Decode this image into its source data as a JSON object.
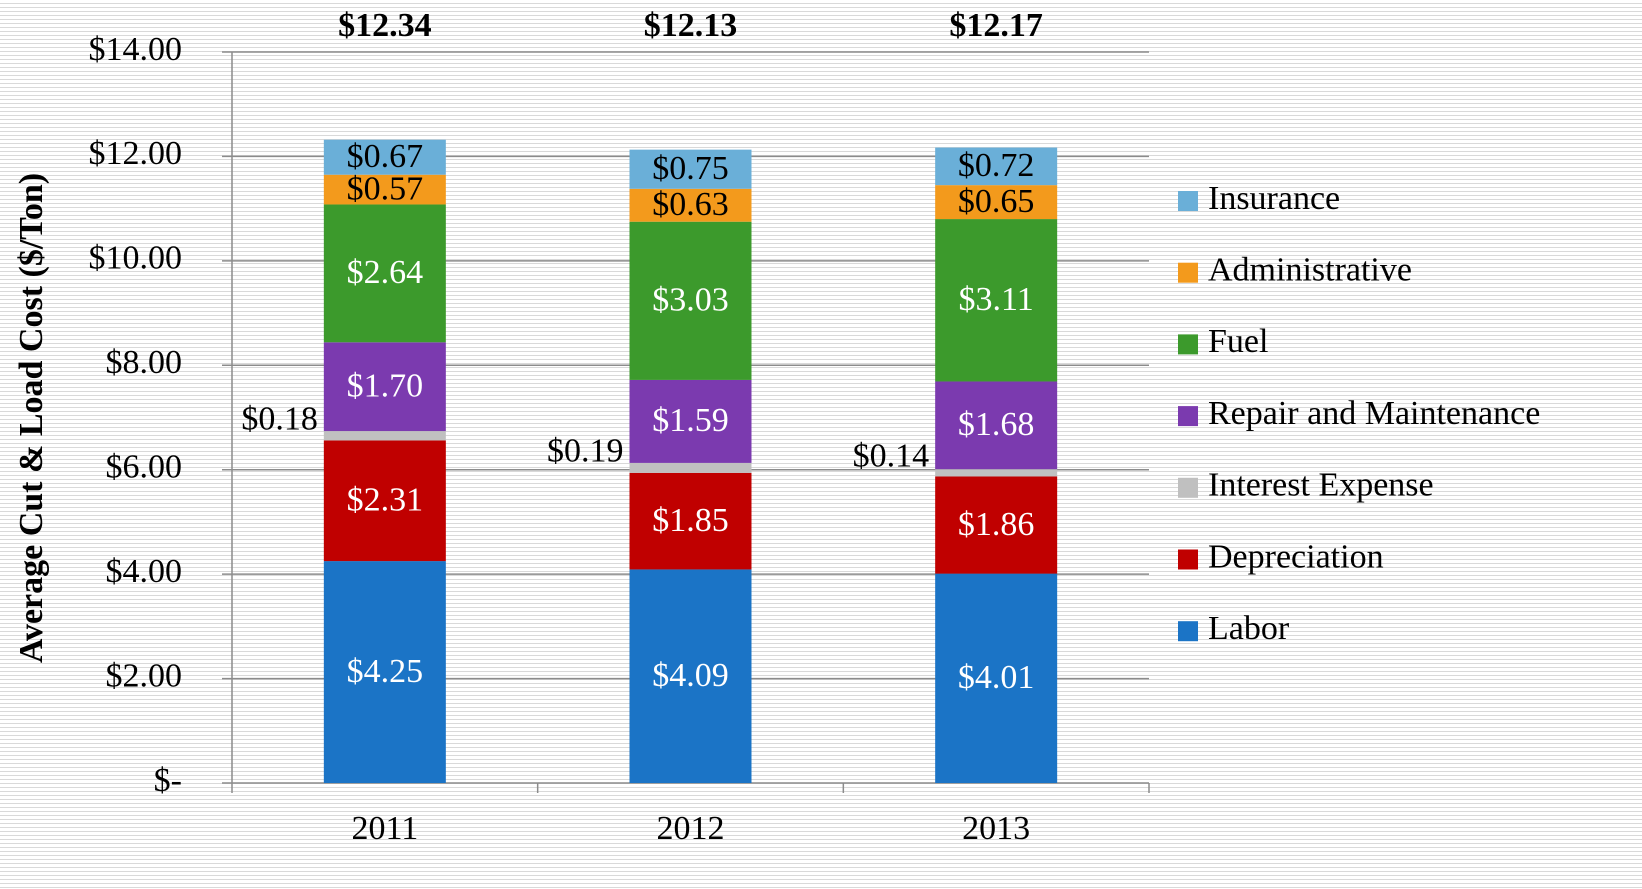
{
  "chart_data": {
    "type": "stacked_bar",
    "y_label": "Average Cut & Load Cost ($/Ton)",
    "categories": [
      "2011",
      "2012",
      "2013"
    ],
    "series": [
      {
        "name": "Labor",
        "color": "#1b74c6",
        "values": [
          4.25,
          4.09,
          4.01
        ],
        "value_labels": [
          "$4.25",
          "$4.09",
          "$4.01"
        ]
      },
      {
        "name": "Depreciation",
        "color": "#c00000",
        "values": [
          2.31,
          1.85,
          1.86
        ],
        "value_labels": [
          "$2.31",
          "$1.85",
          "$1.86"
        ]
      },
      {
        "name": "Interest Expense",
        "color": "#c0c0c0",
        "values": [
          0.18,
          0.19,
          0.14
        ],
        "value_labels": [
          "$0.18",
          "$0.19",
          "$0.14"
        ]
      },
      {
        "name": "Repair and Maintenance",
        "color": "#7b3aaf",
        "values": [
          1.7,
          1.59,
          1.68
        ],
        "value_labels": [
          "$1.70",
          "$1.59",
          "$1.68"
        ]
      },
      {
        "name": "Fuel",
        "color": "#3c9a2c",
        "values": [
          2.64,
          3.03,
          3.11
        ],
        "value_labels": [
          "$2.64",
          "$3.03",
          "$3.11"
        ]
      },
      {
        "name": "Administrative",
        "color": "#f39a1c",
        "values": [
          0.57,
          0.63,
          0.65
        ],
        "value_labels": [
          "$0.57",
          "$0.63",
          "$0.65"
        ]
      },
      {
        "name": "Insurance",
        "color": "#6aafd8",
        "values": [
          0.67,
          0.75,
          0.72
        ],
        "value_labels": [
          "$0.67",
          "$0.75",
          "$0.72"
        ]
      }
    ],
    "totals": {
      "values": [
        12.34,
        12.13,
        12.17
      ],
      "value_labels": [
        "$12.34",
        "$12.13",
        "$12.17"
      ]
    },
    "ylim": [
      0,
      14
    ],
    "yticks": [
      {
        "value": 0,
        "label": "$-"
      },
      {
        "value": 2,
        "label": "$2.00"
      },
      {
        "value": 4,
        "label": "$4.00"
      },
      {
        "value": 6,
        "label": "$6.00"
      },
      {
        "value": 8,
        "label": "$8.00"
      },
      {
        "value": 10,
        "label": "$10.00"
      },
      {
        "value": 12,
        "label": "$12.00"
      },
      {
        "value": 14,
        "label": "$14.00"
      }
    ],
    "grid": true,
    "legend": "right"
  }
}
